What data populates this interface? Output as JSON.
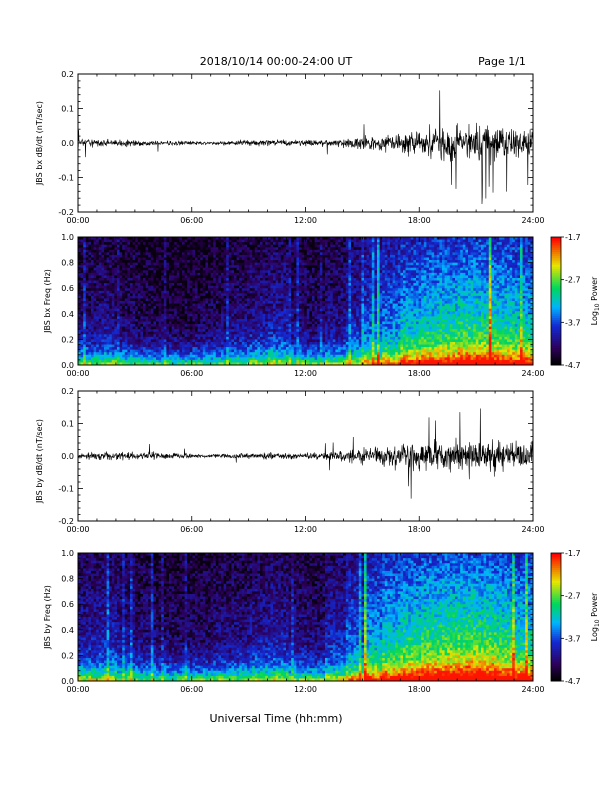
{
  "header": {
    "title": "2018/10/14  00:00-24:00 UT",
    "page": "Page 1/1"
  },
  "footer": {
    "xlabel": "Universal Time (hh:mm)"
  },
  "chart_data": [
    {
      "type": "line",
      "ylabel": "JBS bx dB/dt (nT/sec)",
      "ylim": [
        -0.2,
        0.2
      ],
      "yticks": [
        "0.2",
        "0.1",
        "0.0",
        "-0.1",
        "-0.2"
      ],
      "xticks": [
        "00:00",
        "06:00",
        "12:00",
        "18:00",
        "24:00"
      ],
      "xlim_hours": [
        0,
        24
      ],
      "series": [
        {
          "x_hours": [
            0,
            1,
            2,
            3,
            4,
            5,
            6,
            7,
            8,
            9,
            10,
            11,
            12,
            13,
            14,
            15,
            16,
            17,
            18,
            19,
            20,
            21,
            22,
            23,
            24
          ],
          "envelope_amplitude": [
            0.02,
            0.02,
            0.017,
            0.015,
            0.014,
            0.012,
            0.01,
            0.008,
            0.01,
            0.015,
            0.018,
            0.015,
            0.013,
            0.015,
            0.022,
            0.03,
            0.04,
            0.055,
            0.07,
            0.075,
            0.085,
            0.09,
            0.09,
            0.08,
            0.07
          ]
        }
      ]
    },
    {
      "type": "heatmap",
      "ylabel": "JBS bx Freq (Hz)",
      "ylim": [
        0.0,
        1.0
      ],
      "yticks": [
        "1.0",
        "0.8",
        "0.6",
        "0.4",
        "0.2",
        "0.0"
      ],
      "xticks": [
        "00:00",
        "06:00",
        "12:00",
        "18:00",
        "24:00"
      ],
      "xlim_hours": [
        0,
        24
      ],
      "colorbar": {
        "label": "Log10 Power",
        "label_base": "Log",
        "label_sub": "10",
        "label_rest": " Power",
        "range": [
          -4.7,
          -1.7
        ],
        "ticks": [
          "-1.7",
          "-2.7",
          "-3.7",
          "-4.7"
        ]
      },
      "activity_by_hour": [
        0.18,
        0.2,
        0.15,
        0.12,
        0.1,
        0.1,
        0.12,
        0.15,
        0.18,
        0.22,
        0.25,
        0.18,
        0.15,
        0.2,
        0.28,
        0.38,
        0.45,
        0.55,
        0.6,
        0.62,
        0.66,
        0.64,
        0.62,
        0.58
      ]
    },
    {
      "type": "line",
      "ylabel": "JBS by dB/dt (nT/sec)",
      "ylim": [
        -0.2,
        0.2
      ],
      "yticks": [
        "0.2",
        "0.1",
        "0.0",
        "-0.1",
        "-0.2"
      ],
      "xticks": [
        "00:00",
        "06:00",
        "12:00",
        "18:00",
        "24:00"
      ],
      "xlim_hours": [
        0,
        24
      ],
      "series": [
        {
          "x_hours": [
            0,
            1,
            2,
            3,
            4,
            5,
            6,
            7,
            8,
            9,
            10,
            11,
            12,
            13,
            14,
            15,
            16,
            17,
            18,
            19,
            20,
            21,
            22,
            23,
            24
          ],
          "envelope_amplitude": [
            0.02,
            0.022,
            0.025,
            0.02,
            0.018,
            0.015,
            0.012,
            0.01,
            0.012,
            0.015,
            0.018,
            0.016,
            0.015,
            0.02,
            0.03,
            0.042,
            0.05,
            0.06,
            0.07,
            0.075,
            0.08,
            0.085,
            0.085,
            0.08,
            0.07
          ]
        }
      ]
    },
    {
      "type": "heatmap",
      "ylabel": "JBS by Freq (Hz)",
      "ylim": [
        0.0,
        1.0
      ],
      "yticks": [
        "1.0",
        "0.8",
        "0.6",
        "0.4",
        "0.2",
        "0.0"
      ],
      "xticks": [
        "00:00",
        "06:00",
        "12:00",
        "18:00",
        "24:00"
      ],
      "xlim_hours": [
        0,
        24
      ],
      "colorbar": {
        "label": "Log10 Power",
        "label_base": "Log",
        "label_sub": "10",
        "label_rest": " Power",
        "range": [
          -4.7,
          -1.7
        ],
        "ticks": [
          "-1.7",
          "-2.7",
          "-3.7",
          "-4.7"
        ]
      },
      "activity_by_hour": [
        0.25,
        0.28,
        0.22,
        0.18,
        0.15,
        0.14,
        0.15,
        0.18,
        0.2,
        0.24,
        0.26,
        0.2,
        0.18,
        0.28,
        0.4,
        0.52,
        0.6,
        0.66,
        0.7,
        0.72,
        0.74,
        0.72,
        0.68,
        0.62
      ]
    }
  ]
}
